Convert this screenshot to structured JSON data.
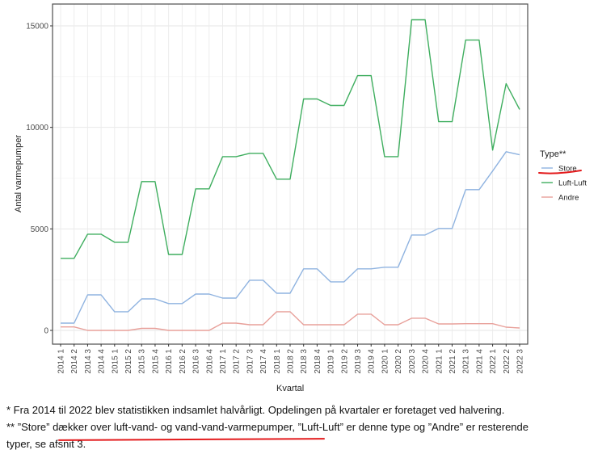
{
  "chart_data": {
    "type": "line",
    "title": "",
    "xlabel": "Kvartal",
    "ylabel": "Antal varmepumper",
    "ylim": [
      -700,
      15500
    ],
    "yticks": [
      0,
      5000,
      10000,
      15000
    ],
    "ytick_labels": [
      "0",
      "5000",
      "10000",
      "15000"
    ],
    "grid": true,
    "legend": {
      "title": "Type**",
      "placement": "right"
    },
    "categories": [
      "2014 1",
      "2014 2",
      "2014 3",
      "2014 4",
      "2015 1",
      "2015 2",
      "2015 3",
      "2015 4",
      "2016 1",
      "2016 2",
      "2016 3",
      "2016 4",
      "2017 1",
      "2017 2",
      "2017 3",
      "2017 4",
      "2018 1",
      "2018 2",
      "2018 3",
      "2018 4",
      "2019 1",
      "2019 2",
      "2019 3",
      "2019 4",
      "2020 1",
      "2020 2",
      "2020 3",
      "2020 4",
      "2021 1",
      "2021 2",
      "2021 3",
      "2021 4",
      "2022 1",
      "2022 2",
      "2022 3"
    ],
    "series": [
      {
        "name": "Store",
        "color": "#8fb3e0",
        "values": [
          360,
          360,
          1750,
          1750,
          920,
          920,
          1550,
          1550,
          1320,
          1320,
          1790,
          1790,
          1590,
          1590,
          2470,
          2470,
          1830,
          1830,
          3030,
          3030,
          2390,
          2390,
          3030,
          3030,
          3110,
          3110,
          4700,
          4700,
          5020,
          5020,
          6930,
          6930,
          7850,
          8800,
          8650
        ]
      },
      {
        "name": "Luft-Luft",
        "color": "#3fae5f",
        "values": [
          3550,
          3550,
          4740,
          4740,
          4340,
          4340,
          7330,
          7330,
          3740,
          3740,
          6970,
          6970,
          8560,
          8560,
          8720,
          8720,
          7450,
          7450,
          11400,
          11400,
          11080,
          11080,
          12550,
          12550,
          8560,
          8560,
          15300,
          15300,
          10280,
          10280,
          14300,
          14300,
          8880,
          12150,
          10880
        ]
      },
      {
        "name": "Andre",
        "color": "#e8a09a",
        "values": [
          170,
          170,
          0,
          0,
          0,
          0,
          100,
          100,
          0,
          0,
          0,
          0,
          360,
          360,
          280,
          280,
          920,
          920,
          280,
          280,
          280,
          280,
          800,
          800,
          280,
          280,
          600,
          600,
          320,
          320,
          330,
          330,
          330,
          160,
          120
        ]
      }
    ],
    "annotations": {
      "highlight_color": "#e31a1c"
    }
  },
  "notes": {
    "line1": "* Fra 2014 til 2022 blev statistikken indsamlet halvårligt. Opdelingen på kvartaler er foretaget ved halvering.",
    "line2_prefix": "** ",
    "line2_underlined": "”Store” dækker over luft-vand- og vand-vand-varmepumper,",
    "line2_rest": " ”Luft-Luft” er denne type og ”Andre” er resterende",
    "line3": "typer, se afsnit 3."
  }
}
